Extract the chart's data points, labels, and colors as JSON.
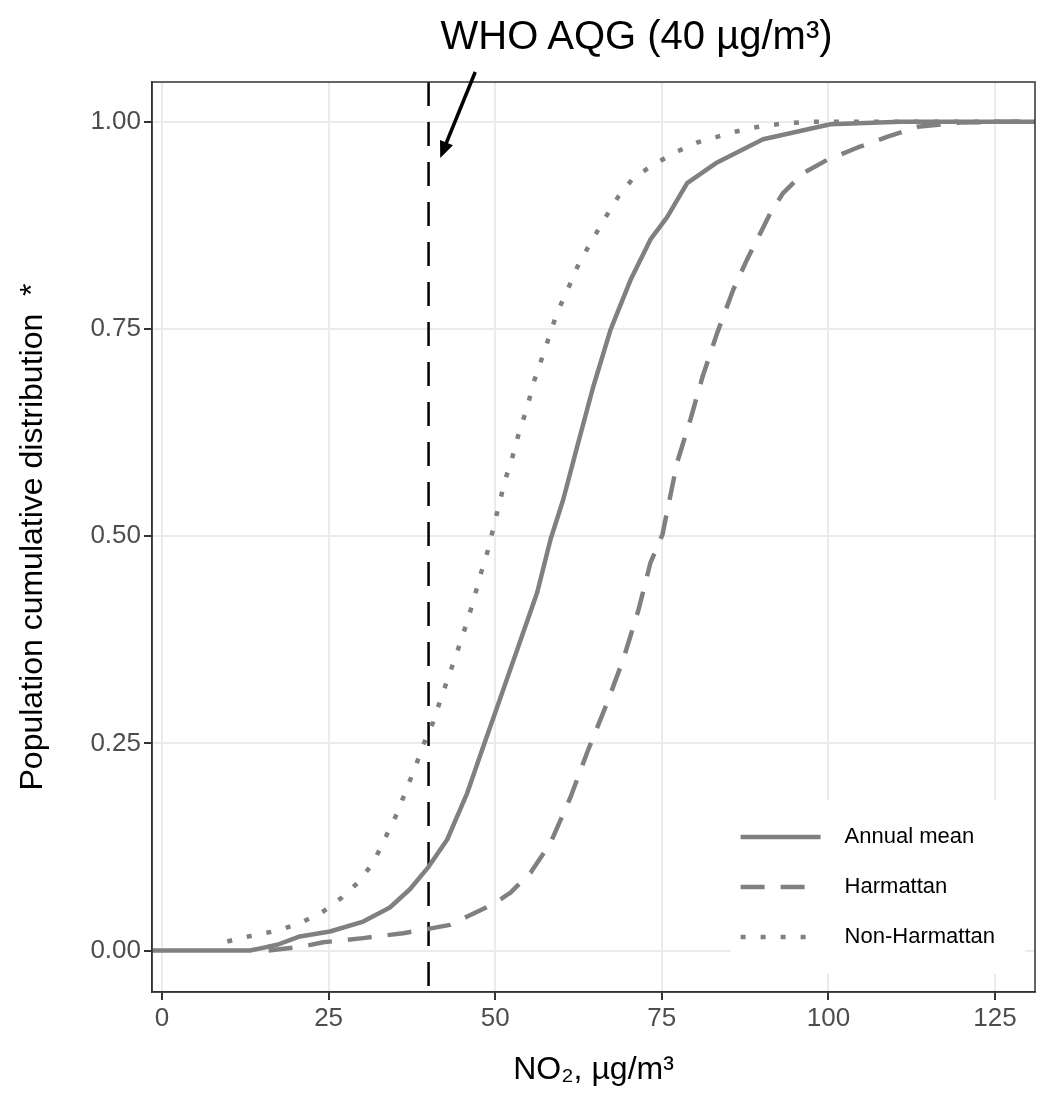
{
  "chart_data": {
    "type": "line",
    "xlabel": "NO₂, µg/m³",
    "ylabel": "Population cumulative distribution  *",
    "xlim": [
      -1.5,
      131
    ],
    "ylim": [
      -0.05,
      1.048
    ],
    "xticks": [
      0,
      25,
      50,
      75,
      100,
      125
    ],
    "yticks": [
      {
        "value": 0,
        "label": "0.00"
      },
      {
        "value": 0.25,
        "label": "0.25"
      },
      {
        "value": 0.5,
        "label": "0.50"
      },
      {
        "value": 0.75,
        "label": "0.75"
      },
      {
        "value": 1,
        "label": "1.00"
      }
    ],
    "grid": true,
    "legend": "bottom right",
    "marker": "none",
    "ref_lines": [
      {
        "axis": "x",
        "value": 40,
        "label": "WHO AQG (40 µg/m³)",
        "color": "#000000",
        "line_style": "dashed"
      }
    ],
    "series": [
      {
        "name": "Annual mean",
        "color": "#808080",
        "line_style": "solid",
        "x": [
          -1.5,
          13.2,
          17.3,
          20.7,
          25.2,
          30.2,
          34.2,
          37.2,
          40,
          42.8,
          45.8,
          48.2,
          50.3,
          53.3,
          56.3,
          58.3,
          60.2,
          62.3,
          64.7,
          67.3,
          70.3,
          73.3,
          75.8,
          78.8,
          83.3,
          90.2,
          100.3,
          110.8,
          131
        ],
        "values": [
          0,
          0,
          0.007,
          0.017,
          0.023,
          0.035,
          0.052,
          0.074,
          0.101,
          0.134,
          0.19,
          0.246,
          0.294,
          0.363,
          0.432,
          0.496,
          0.544,
          0.608,
          0.68,
          0.749,
          0.809,
          0.858,
          0.885,
          0.926,
          0.951,
          0.979,
          0.997,
          1,
          1
        ]
      },
      {
        "name": "Harmattan",
        "color": "#808080",
        "line_style": "dashed",
        "x": [
          16,
          21.2,
          24.2,
          30.2,
          36.2,
          39.2,
          43.2,
          45.8,
          49.7,
          52.3,
          55.3,
          58.3,
          61.3,
          63.8,
          66.8,
          69.2,
          71.5,
          73.3,
          75.1,
          77.3,
          79.3,
          81.1,
          83.3,
          85.7,
          87.8,
          89.5,
          91.3,
          93.2,
          96.2,
          99.8,
          104.4,
          108.9,
          113.4,
          119.8,
          125.8,
          131
        ],
        "values": [
          0,
          0.005,
          0.01,
          0.015,
          0.021,
          0.025,
          0.031,
          0.041,
          0.056,
          0.07,
          0.094,
          0.13,
          0.185,
          0.239,
          0.299,
          0.351,
          0.411,
          0.468,
          0.502,
          0.589,
          0.641,
          0.692,
          0.745,
          0.797,
          0.834,
          0.861,
          0.89,
          0.914,
          0.938,
          0.954,
          0.969,
          0.982,
          0.994,
          0.999,
          1,
          1
        ]
      },
      {
        "name": "Non-Harmattan",
        "color": "#808080",
        "line_style": "dotted",
        "x": [
          9.8,
          13.5,
          17.3,
          20.7,
          24,
          27,
          29.4,
          31.7,
          33.5,
          35.3,
          36.6,
          38,
          39.2,
          40.7,
          41.9,
          43.2,
          44.4,
          45.6,
          46.7,
          47.7,
          48.8,
          49.7,
          50.6,
          51.5,
          52.6,
          53.6,
          54.8,
          55.7,
          56.9,
          58.1,
          59.3,
          60.8,
          62.5,
          64.6,
          66.5,
          68.5,
          70.7,
          73.7,
          77,
          80.3,
          86,
          89.5,
          93.2,
          97,
          131
        ],
        "values": [
          0.011,
          0.018,
          0.024,
          0.033,
          0.046,
          0.064,
          0.082,
          0.106,
          0.136,
          0.166,
          0.193,
          0.221,
          0.248,
          0.276,
          0.305,
          0.335,
          0.363,
          0.392,
          0.421,
          0.451,
          0.48,
          0.509,
          0.539,
          0.568,
          0.596,
          0.626,
          0.655,
          0.684,
          0.712,
          0.741,
          0.77,
          0.796,
          0.828,
          0.858,
          0.884,
          0.91,
          0.932,
          0.948,
          0.963,
          0.975,
          0.988,
          0.994,
          0.998,
          1,
          1
        ]
      }
    ]
  }
}
